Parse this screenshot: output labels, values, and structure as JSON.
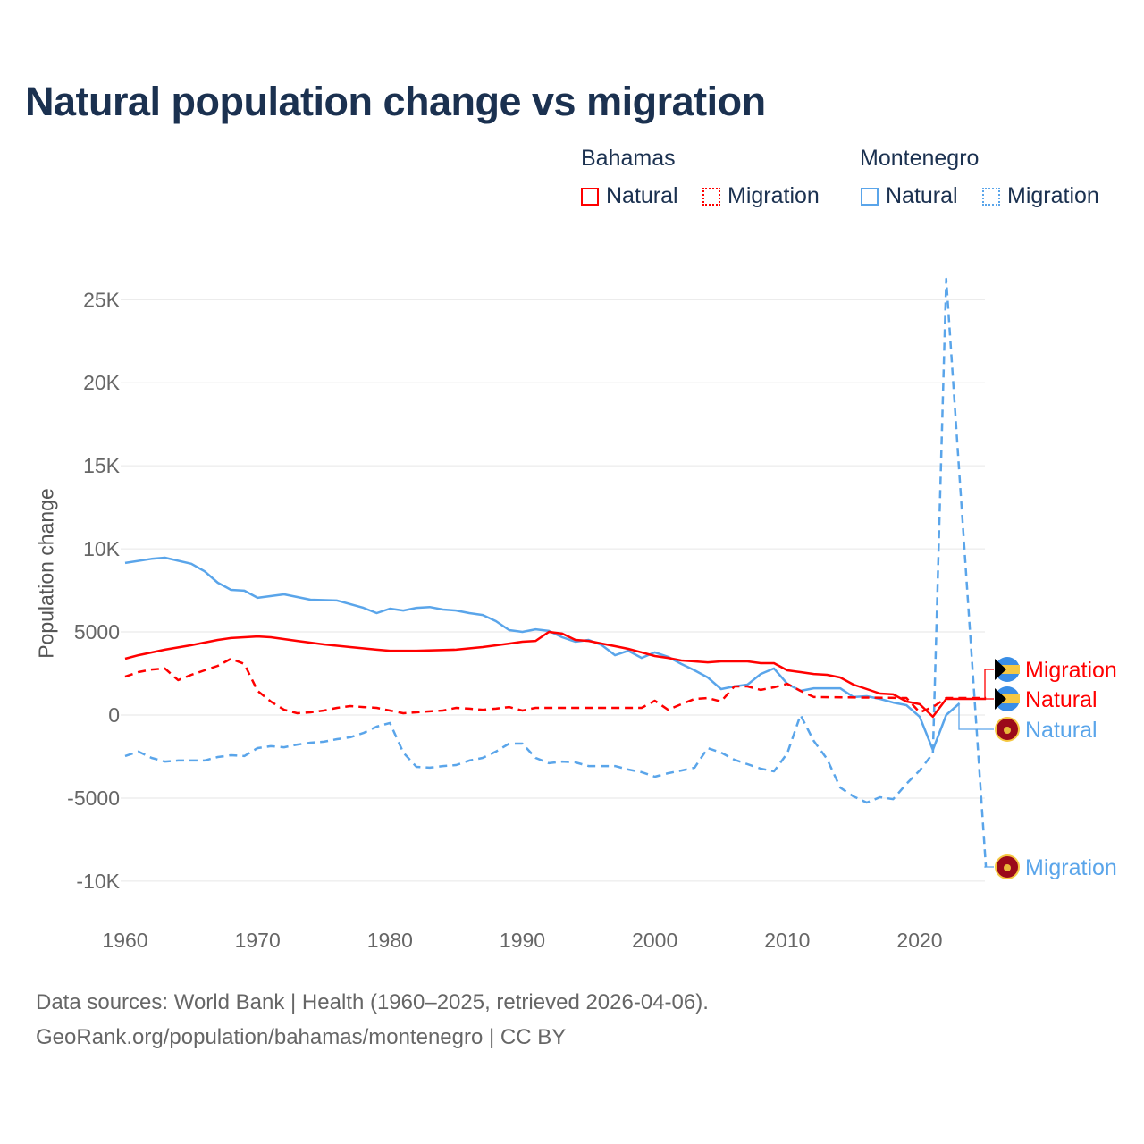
{
  "chart_data": {
    "type": "line",
    "title": "Natural population change vs migration",
    "xlabel": "",
    "ylabel": "Population change",
    "xlim": [
      1960,
      2025
    ],
    "ylim": [
      -10000,
      26500
    ],
    "grid": true,
    "x_ticks": [
      1960,
      1970,
      1980,
      1990,
      2000,
      2010,
      2020
    ],
    "x_tick_labels": [
      "1960",
      "1970",
      "1980",
      "1990",
      "2000",
      "2010",
      "2020"
    ],
    "y_ticks": [
      25000,
      20000,
      15000,
      10000,
      5000,
      0,
      -5000,
      -10000
    ],
    "y_tick_labels": [
      "25K",
      "20K",
      "15K",
      "10K",
      "5000",
      "0",
      "-5000",
      "-10K"
    ],
    "legend": {
      "placement": "top-right",
      "groups": [
        {
          "name": "Bahamas",
          "items": [
            "Natural",
            "Migration"
          ]
        },
        {
          "name": "Montenegro",
          "items": [
            "Natural",
            "Migration"
          ]
        }
      ]
    },
    "series": [
      {
        "name": "Natural",
        "country": "Bahamas",
        "color": "#ff0000",
        "dash": false,
        "x": [
          1960,
          1961,
          1963,
          1965,
          1967,
          1968,
          1969,
          1970,
          1971,
          1973,
          1975,
          1977,
          1979,
          1980,
          1982,
          1985,
          1987,
          1989,
          1990,
          1991,
          1992,
          1993,
          1994,
          1995,
          1996,
          1997,
          1998,
          1999,
          2000,
          2001,
          2002,
          2003,
          2004,
          2005,
          2006,
          2007,
          2008,
          2009,
          2010,
          2011,
          2012,
          2013,
          2014,
          2015,
          2016,
          2017,
          2018,
          2019,
          2020,
          2021,
          2022,
          2023,
          2024,
          2025
        ],
        "values": [
          3390,
          3600,
          3930,
          4200,
          4520,
          4630,
          4680,
          4730,
          4680,
          4460,
          4250,
          4090,
          3930,
          3870,
          3870,
          3930,
          4090,
          4300,
          4410,
          4460,
          5000,
          4900,
          4520,
          4460,
          4300,
          4140,
          3980,
          3770,
          3550,
          3440,
          3280,
          3230,
          3170,
          3230,
          3230,
          3230,
          3120,
          3120,
          2690,
          2580,
          2470,
          2420,
          2260,
          1830,
          1560,
          1290,
          1240,
          810,
          650,
          -100,
          970,
          970,
          970,
          970
        ]
      },
      {
        "name": "Migration",
        "country": "Bahamas",
        "color": "#ff0000",
        "dash": true,
        "x": [
          1960,
          1961,
          1962,
          1963,
          1964,
          1965,
          1966,
          1967,
          1968,
          1969,
          1970,
          1971,
          1972,
          1973,
          1974,
          1975,
          1976,
          1977,
          1978,
          1979,
          1980,
          1981,
          1982,
          1983,
          1984,
          1985,
          1986,
          1987,
          1988,
          1989,
          1990,
          1991,
          1999,
          2000,
          2001,
          2002,
          2003,
          2004,
          2005,
          2006,
          2007,
          2008,
          2009,
          2010,
          2011,
          2012,
          2019,
          2020,
          2021,
          2022,
          2023,
          2024,
          2025
        ],
        "values": [
          2310,
          2580,
          2740,
          2800,
          2100,
          2420,
          2690,
          2960,
          3390,
          3070,
          1450,
          810,
          320,
          110,
          160,
          270,
          430,
          540,
          480,
          430,
          270,
          110,
          160,
          220,
          270,
          430,
          380,
          320,
          380,
          480,
          270,
          430,
          430,
          860,
          320,
          650,
          970,
          1020,
          810,
          1720,
          1720,
          1510,
          1670,
          1880,
          1450,
          1080,
          1020,
          160,
          480,
          1020,
          1020,
          1020,
          1020
        ]
      },
      {
        "name": "Natural",
        "country": "Montenegro",
        "color": "#5aa5ea",
        "dash": false,
        "x": [
          1960,
          1962,
          1963,
          1965,
          1966,
          1967,
          1968,
          1969,
          1970,
          1972,
          1974,
          1976,
          1978,
          1979,
          1980,
          1981,
          1982,
          1983,
          1984,
          1985,
          1986,
          1987,
          1988,
          1989,
          1990,
          1991,
          1992,
          1993,
          1994,
          1995,
          1996,
          1997,
          1998,
          1999,
          2000,
          2001,
          2002,
          2003,
          2004,
          2005,
          2006,
          2007,
          2008,
          2009,
          2010,
          2011,
          2012,
          2014,
          2015,
          2016,
          2017,
          2018,
          2019,
          2020,
          2021,
          2022,
          2023
        ],
        "values": [
          9150,
          9400,
          9470,
          9100,
          8650,
          7960,
          7530,
          7480,
          7050,
          7260,
          6940,
          6890,
          6450,
          6130,
          6400,
          6290,
          6450,
          6500,
          6350,
          6290,
          6130,
          6020,
          5650,
          5110,
          5000,
          5160,
          5060,
          4680,
          4410,
          4520,
          4200,
          3600,
          3870,
          3440,
          3770,
          3500,
          3070,
          2690,
          2260,
          1560,
          1720,
          1830,
          2470,
          2800,
          1880,
          1450,
          1610,
          1610,
          1080,
          1130,
          970,
          750,
          590,
          -100,
          -2100,
          0,
          700
        ]
      },
      {
        "name": "Migration",
        "country": "Montenegro",
        "color": "#5aa5ea",
        "dash": true,
        "x": [
          1960,
          1961,
          1962,
          1963,
          1964,
          1966,
          1967,
          1968,
          1969,
          1970,
          1971,
          1972,
          1973,
          1974,
          1975,
          1976,
          1977,
          1978,
          1979,
          1980,
          1981,
          1982,
          1983,
          1984,
          1985,
          1986,
          1987,
          1988,
          1989,
          1990,
          1991,
          1992,
          1993,
          1994,
          1995,
          1997,
          1998,
          1999,
          2000,
          2001,
          2002,
          2003,
          2004,
          2005,
          2006,
          2007,
          2008,
          2009,
          2010,
          2011,
          2012,
          2013,
          2014,
          2015,
          2016,
          2017,
          2018,
          2019,
          2020,
          2021,
          2022,
          2023,
          2024,
          2025
        ],
        "values": [
          -2470,
          -2200,
          -2580,
          -2800,
          -2740,
          -2740,
          -2530,
          -2420,
          -2470,
          -1990,
          -1880,
          -1940,
          -1780,
          -1670,
          -1610,
          -1450,
          -1340,
          -1080,
          -700,
          -480,
          -2260,
          -3120,
          -3170,
          -3070,
          -3010,
          -2740,
          -2580,
          -2200,
          -1720,
          -1720,
          -2580,
          -2900,
          -2800,
          -2850,
          -3070,
          -3070,
          -3280,
          -3440,
          -3710,
          -3500,
          -3340,
          -3170,
          -1990,
          -2260,
          -2690,
          -2960,
          -3230,
          -3390,
          -2310,
          0,
          -1560,
          -2640,
          -4360,
          -4900,
          -5270,
          -4950,
          -5060,
          -4140,
          -3340,
          -2310,
          26250,
          14450,
          2650,
          -9150
        ]
      }
    ],
    "end_labels": [
      {
        "text": "Migration",
        "country": "Bahamas",
        "color": "#ff0000"
      },
      {
        "text": "Natural",
        "country": "Bahamas",
        "color": "#ff0000"
      },
      {
        "text": "Natural",
        "country": "Montenegro",
        "color": "#5aa5ea"
      },
      {
        "text": "Migration",
        "country": "Montenegro",
        "color": "#5aa5ea"
      }
    ]
  },
  "footer": {
    "line1": "Data sources: World Bank | Health (1960–2025, retrieved 2026-04-06).",
    "line2": "GeoRank.org/population/bahamas/montenegro | CC BY"
  }
}
